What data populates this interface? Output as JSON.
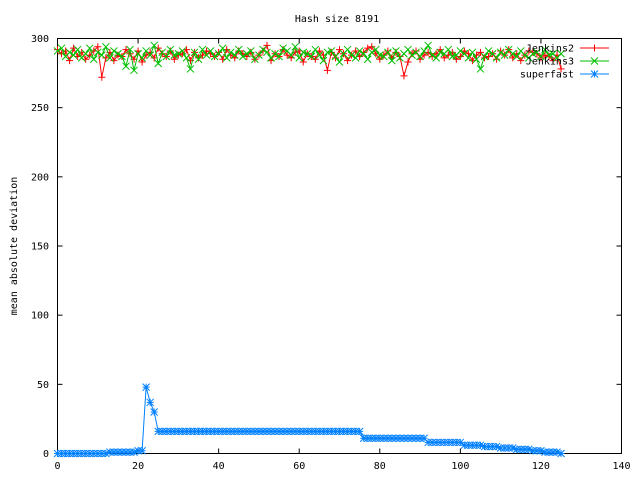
{
  "chart_data": {
    "type": "line",
    "title": "Hash size 8191",
    "xlabel": "",
    "ylabel": "mean absolute deviation",
    "xlim": [
      0,
      140
    ],
    "ylim": [
      0,
      300
    ],
    "x_ticks": [
      0,
      20,
      40,
      60,
      80,
      100,
      120,
      140
    ],
    "y_ticks": [
      0,
      50,
      100,
      150,
      200,
      250,
      300
    ],
    "grid": false,
    "legend_position": "top-right",
    "series": [
      {
        "name": "Jenkins2",
        "color": "#ff0000",
        "marker": "plus",
        "x": [
          0,
          1,
          2,
          3,
          4,
          5,
          6,
          7,
          8,
          9,
          10,
          11,
          12,
          13,
          14,
          15,
          16,
          17,
          18,
          19,
          20,
          21,
          22,
          23,
          24,
          25,
          26,
          27,
          28,
          29,
          30,
          31,
          32,
          33,
          34,
          35,
          36,
          37,
          38,
          39,
          40,
          41,
          42,
          43,
          44,
          45,
          46,
          47,
          48,
          49,
          50,
          51,
          52,
          53,
          54,
          55,
          56,
          57,
          58,
          59,
          60,
          61,
          62,
          63,
          64,
          65,
          66,
          67,
          68,
          69,
          70,
          71,
          72,
          73,
          74,
          75,
          76,
          77,
          78,
          79,
          80,
          81,
          82,
          83,
          84,
          85,
          86,
          87,
          88,
          89,
          90,
          91,
          92,
          93,
          94,
          95,
          96,
          97,
          98,
          99,
          100,
          101,
          102,
          103,
          104,
          105,
          106,
          107,
          108,
          109,
          110,
          111,
          112,
          113,
          114,
          115,
          116,
          117,
          118,
          119,
          120,
          121,
          122,
          123,
          124,
          125
        ],
        "values": [
          292,
          289,
          291,
          284,
          293,
          287,
          290,
          285,
          288,
          291,
          294,
          272,
          286,
          290,
          284,
          288,
          287,
          292,
          289,
          285,
          291,
          283,
          288,
          290,
          286,
          293,
          289,
          287,
          291,
          285,
          288,
          289,
          292,
          284,
          290,
          286,
          288,
          291,
          289,
          287,
          290,
          285,
          292,
          288,
          286,
          291,
          289,
          287,
          290,
          285,
          288,
          291,
          295,
          284,
          289,
          287,
          292,
          288,
          286,
          290,
          291,
          283,
          289,
          287,
          285,
          291,
          288,
          277,
          290,
          286,
          292,
          289,
          284,
          288,
          291,
          287,
          290,
          293,
          294,
          289,
          285,
          288,
          291,
          286,
          290,
          287,
          273,
          283,
          289,
          291,
          285,
          288,
          290,
          287,
          289,
          292,
          286,
          288,
          290,
          285,
          287,
          291,
          289,
          284,
          288,
          290,
          286,
          287,
          289,
          285,
          291,
          288,
          292,
          286,
          289,
          284,
          288,
          291,
          290,
          289,
          286,
          288,
          287,
          284,
          288,
          278
        ]
      },
      {
        "name": "Jenkins3",
        "color": "#00c000",
        "marker": "x",
        "x": [
          0,
          1,
          2,
          3,
          4,
          5,
          6,
          7,
          8,
          9,
          10,
          11,
          12,
          13,
          14,
          15,
          16,
          17,
          18,
          19,
          20,
          21,
          22,
          23,
          24,
          25,
          26,
          27,
          28,
          29,
          30,
          31,
          32,
          33,
          34,
          35,
          36,
          37,
          38,
          39,
          40,
          41,
          42,
          43,
          44,
          45,
          46,
          47,
          48,
          49,
          50,
          51,
          52,
          53,
          54,
          55,
          56,
          57,
          58,
          59,
          60,
          61,
          62,
          63,
          64,
          65,
          66,
          67,
          68,
          69,
          70,
          71,
          72,
          73,
          74,
          75,
          76,
          77,
          78,
          79,
          80,
          81,
          82,
          83,
          84,
          85,
          86,
          87,
          88,
          89,
          90,
          91,
          92,
          93,
          94,
          95,
          96,
          97,
          98,
          99,
          100,
          101,
          102,
          103,
          104,
          105,
          106,
          107,
          108,
          109,
          110,
          111,
          112,
          113,
          114,
          115,
          116,
          117,
          118,
          119,
          120,
          121,
          122,
          123,
          124,
          125
        ],
        "values": [
          291,
          293,
          287,
          290,
          288,
          292,
          286,
          289,
          293,
          285,
          290,
          288,
          294,
          286,
          291,
          289,
          287,
          280,
          292,
          277,
          289,
          286,
          291,
          288,
          295,
          282,
          290,
          287,
          292,
          288,
          289,
          291,
          286,
          278,
          290,
          285,
          292,
          288,
          291,
          287,
          289,
          293,
          286,
          290,
          288,
          292,
          287,
          289,
          291,
          285,
          288,
          292,
          290,
          286,
          289,
          287,
          293,
          291,
          288,
          294,
          286,
          290,
          289,
          287,
          292,
          288,
          284,
          290,
          291,
          287,
          283,
          289,
          292,
          288,
          286,
          291,
          289,
          285,
          290,
          292,
          288,
          287,
          290,
          284,
          291,
          286,
          289,
          292,
          288,
          290,
          287,
          291,
          295,
          288,
          286,
          290,
          289,
          292,
          287,
          288,
          291,
          289,
          286,
          290,
          285,
          278,
          287,
          291,
          289,
          286,
          290,
          288,
          292,
          289,
          287,
          291,
          288,
          286,
          289,
          290,
          287,
          292,
          288,
          289,
          286,
          289
        ]
      },
      {
        "name": "superfast",
        "color": "#0080ff",
        "marker": "star",
        "x": [
          0,
          1,
          2,
          3,
          4,
          5,
          6,
          7,
          8,
          9,
          10,
          11,
          12,
          13,
          14,
          15,
          16,
          17,
          18,
          19,
          20,
          21,
          22,
          23,
          24,
          25,
          26,
          27,
          28,
          29,
          30,
          31,
          32,
          33,
          34,
          35,
          36,
          37,
          38,
          39,
          40,
          41,
          42,
          43,
          44,
          45,
          46,
          47,
          48,
          49,
          50,
          51,
          52,
          53,
          54,
          55,
          56,
          57,
          58,
          59,
          60,
          61,
          62,
          63,
          64,
          65,
          66,
          67,
          68,
          69,
          70,
          71,
          72,
          73,
          74,
          75,
          76,
          77,
          78,
          79,
          80,
          81,
          82,
          83,
          84,
          85,
          86,
          87,
          88,
          89,
          90,
          91,
          92,
          93,
          94,
          95,
          96,
          97,
          98,
          99,
          100,
          101,
          102,
          103,
          104,
          105,
          106,
          107,
          108,
          109,
          110,
          111,
          112,
          113,
          114,
          115,
          116,
          117,
          118,
          119,
          120,
          121,
          122,
          123,
          124,
          125
        ],
        "values": [
          0,
          0,
          0,
          0,
          0,
          0,
          0,
          0,
          0,
          0,
          0,
          0,
          0,
          1,
          1,
          1,
          1,
          1,
          1,
          1,
          2,
          2,
          48,
          37,
          30,
          16,
          16,
          16,
          16,
          16,
          16,
          16,
          16,
          16,
          16,
          16,
          16,
          16,
          16,
          16,
          16,
          16,
          16,
          16,
          16,
          16,
          16,
          16,
          16,
          16,
          16,
          16,
          16,
          16,
          16,
          16,
          16,
          16,
          16,
          16,
          16,
          16,
          16,
          16,
          16,
          16,
          16,
          16,
          16,
          16,
          16,
          16,
          16,
          16,
          16,
          16,
          11,
          11,
          11,
          11,
          11,
          11,
          11,
          11,
          11,
          11,
          11,
          11,
          11,
          11,
          11,
          11,
          8,
          8,
          8,
          8,
          8,
          8,
          8,
          8,
          8,
          6,
          6,
          6,
          6,
          6,
          5,
          5,
          5,
          5,
          4,
          4,
          4,
          4,
          3,
          3,
          3,
          3,
          2,
          2,
          2,
          1,
          1,
          1,
          1,
          0
        ]
      }
    ]
  }
}
